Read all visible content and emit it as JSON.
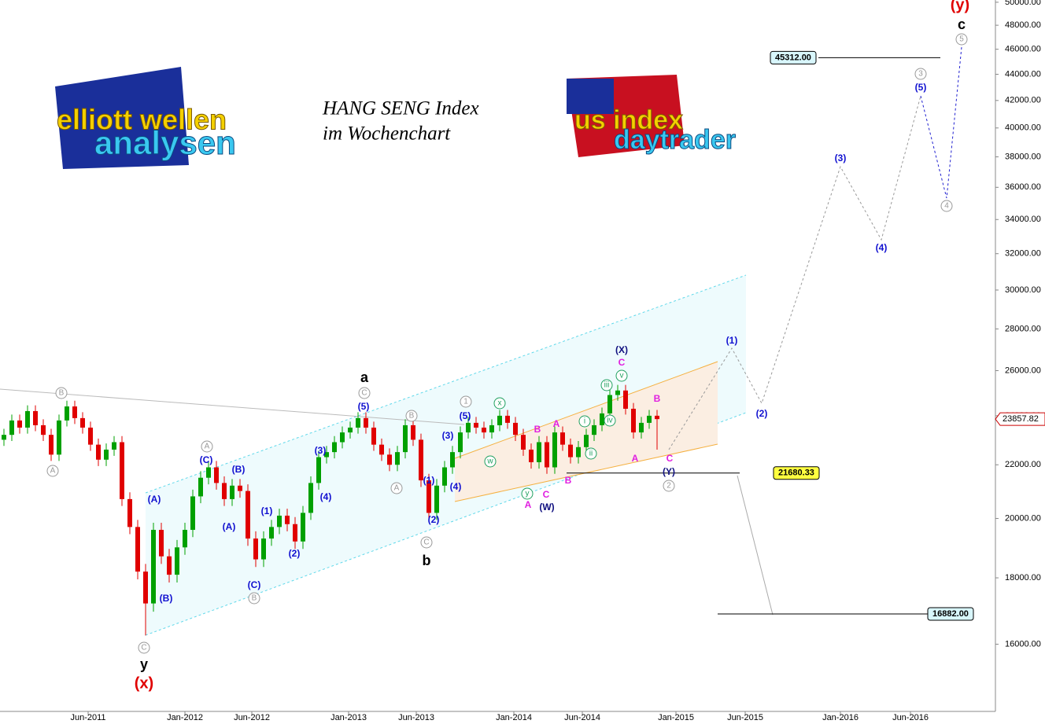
{
  "chart_data": {
    "type": "candlestick",
    "title_lines": [
      "HANG SENG Index",
      "im Wochenchart"
    ],
    "logos": [
      "elliott wellen",
      "analysen",
      "us index",
      "daytrader"
    ],
    "log_scale": true,
    "ylim": [
      14200,
      50200
    ],
    "yticks": [
      {
        "value": 16000,
        "label": "16000.00"
      },
      {
        "value": 18000,
        "label": "18000.00"
      },
      {
        "value": 20000,
        "label": "20000.00"
      },
      {
        "value": 22000,
        "label": "22000.00"
      },
      {
        "value": 24000,
        "label": "24000.00"
      },
      {
        "value": 26000,
        "label": "26000.00"
      },
      {
        "value": 28000,
        "label": "28000.00"
      },
      {
        "value": 30000,
        "label": "30000.00"
      },
      {
        "value": 32000,
        "label": "32000.00"
      },
      {
        "value": 34000,
        "label": "34000.00"
      },
      {
        "value": 36000,
        "label": "36000.00"
      },
      {
        "value": 38000,
        "label": "38000.00"
      },
      {
        "value": 40000,
        "label": "40000.00"
      },
      {
        "value": 42000,
        "label": "42000.00"
      },
      {
        "value": 44000,
        "label": "44000.00"
      },
      {
        "value": 46000,
        "label": "46000.00"
      },
      {
        "value": 48000,
        "label": "48000.00"
      },
      {
        "value": 50000,
        "label": "50000.00"
      }
    ],
    "xtick_labels": [
      "Jun-2011",
      "Jan-2012",
      "Jun-2012",
      "Jan-2013",
      "Jun-2013",
      "Jan-2014",
      "Jun-2014",
      "Jan-2015",
      "Jun-2015",
      "Jan-2016",
      "Jun-2016"
    ],
    "up_color": "#00a000",
    "down_color": "#e00000",
    "last_price": {
      "value": 23857.82,
      "label": "23857.82"
    },
    "levels": [
      {
        "value": 45312,
        "label": "45312.00"
      },
      {
        "value": 21680.33,
        "label": "21680.33"
      },
      {
        "value": 16882,
        "label": "16882.00"
      }
    ],
    "ohlc": [
      [
        23000,
        23450,
        22750,
        23200
      ],
      [
        23200,
        24050,
        22950,
        23800
      ],
      [
        23800,
        24050,
        23250,
        23500
      ],
      [
        23500,
        24450,
        23250,
        24200
      ],
      [
        24200,
        24450,
        23350,
        23600
      ],
      [
        23600,
        23850,
        22950,
        23200
      ],
      [
        23200,
        23450,
        22150,
        22400
      ],
      [
        22400,
        24050,
        22150,
        23800
      ],
      [
        23800,
        24650,
        23550,
        24400
      ],
      [
        24400,
        24650,
        23650,
        23900
      ],
      [
        23900,
        24150,
        23250,
        23500
      ],
      [
        23500,
        23750,
        22550,
        22800
      ],
      [
        22800,
        23050,
        21950,
        22200
      ],
      [
        22200,
        22850,
        21950,
        22600
      ],
      [
        22600,
        23150,
        22350,
        22900
      ],
      [
        22900,
        23150,
        20450,
        20700
      ],
      [
        20700,
        20950,
        19450,
        19700
      ],
      [
        19700,
        19950,
        17950,
        18200
      ],
      [
        18200,
        18450,
        16250,
        17200
      ],
      [
        17200,
        19850,
        16950,
        19600
      ],
      [
        19600,
        19850,
        18450,
        18700
      ],
      [
        18700,
        18950,
        17850,
        18100
      ],
      [
        18100,
        19250,
        17850,
        19000
      ],
      [
        19000,
        19850,
        18750,
        19600
      ],
      [
        19600,
        21050,
        19350,
        20800
      ],
      [
        20800,
        21750,
        20550,
        21500
      ],
      [
        21500,
        22150,
        21250,
        21900
      ],
      [
        21900,
        22150,
        21050,
        21300
      ],
      [
        21300,
        21550,
        20450,
        20700
      ],
      [
        20700,
        21450,
        20450,
        21200
      ],
      [
        21200,
        21450,
        20750,
        21000
      ],
      [
        21000,
        21250,
        19050,
        19300
      ],
      [
        19300,
        19550,
        18350,
        18600
      ],
      [
        18600,
        19550,
        18350,
        19300
      ],
      [
        19300,
        19950,
        19050,
        19700
      ],
      [
        19700,
        20350,
        19450,
        20100
      ],
      [
        20100,
        20350,
        19550,
        19800
      ],
      [
        19800,
        20050,
        18950,
        19200
      ],
      [
        19200,
        20450,
        18950,
        20200
      ],
      [
        20200,
        21550,
        19950,
        21300
      ],
      [
        21300,
        22550,
        21050,
        22300
      ],
      [
        22300,
        22750,
        22050,
        22500
      ],
      [
        22500,
        23150,
        22250,
        22900
      ],
      [
        22900,
        23550,
        22650,
        23300
      ],
      [
        23300,
        23750,
        23050,
        23500
      ],
      [
        23500,
        24150,
        23250,
        23900
      ],
      [
        23900,
        24150,
        23250,
        23500
      ],
      [
        23500,
        23750,
        22550,
        22800
      ],
      [
        22800,
        23050,
        22150,
        22400
      ],
      [
        22400,
        22650,
        21750,
        22000
      ],
      [
        22000,
        22750,
        21750,
        22500
      ],
      [
        22500,
        23850,
        22250,
        23600
      ],
      [
        23600,
        23850,
        22750,
        23000
      ],
      [
        23000,
        23250,
        21150,
        21400
      ],
      [
        21400,
        21650,
        19950,
        20200
      ],
      [
        20200,
        21450,
        19950,
        21200
      ],
      [
        21200,
        22150,
        20950,
        21900
      ],
      [
        21900,
        22750,
        21650,
        22500
      ],
      [
        22500,
        23550,
        22250,
        23300
      ],
      [
        23300,
        23950,
        23050,
        23700
      ],
      [
        23700,
        23950,
        23250,
        23500
      ],
      [
        23500,
        23750,
        23050,
        23300
      ],
      [
        23300,
        23850,
        23050,
        23600
      ],
      [
        23600,
        24250,
        23350,
        24000
      ],
      [
        24000,
        24250,
        23450,
        23700
      ],
      [
        23700,
        23950,
        22950,
        23200
      ],
      [
        23200,
        23450,
        22350,
        22600
      ],
      [
        22600,
        22850,
        21850,
        22100
      ],
      [
        22100,
        23150,
        21850,
        22900
      ],
      [
        22900,
        23150,
        21650,
        21900
      ],
      [
        21900,
        23550,
        21650,
        23300
      ],
      [
        23300,
        23550,
        22550,
        22800
      ],
      [
        22800,
        23050,
        22050,
        22300
      ],
      [
        22300,
        22950,
        22050,
        22700
      ],
      [
        22700,
        23450,
        22450,
        23200
      ],
      [
        23200,
        23850,
        22950,
        23600
      ],
      [
        23600,
        24350,
        23350,
        24100
      ],
      [
        24100,
        25150,
        23850,
        24900
      ],
      [
        24900,
        25350,
        24650,
        25100
      ],
      [
        25100,
        25350,
        24050,
        24300
      ],
      [
        24300,
        24550,
        23050,
        23300
      ],
      [
        23300,
        23950,
        23050,
        23700
      ],
      [
        23700,
        24250,
        23450,
        24000
      ],
      [
        24000,
        24250,
        22600,
        23857.82
      ]
    ],
    "wave_labels": [
      "(y)",
      "c",
      "5",
      "3",
      "(5)",
      "(3)",
      "(4)",
      "4",
      "(1)",
      "(2)",
      "(X)",
      "C",
      "v",
      "iii",
      "iv",
      "ii",
      "i",
      "B",
      "A",
      "C",
      "(Y)",
      "2",
      "A",
      "B",
      "C",
      "(W)",
      "A",
      "y",
      "B",
      "x",
      "w",
      "1",
      "(5)",
      "(3)",
      "(1)",
      "(4)",
      "(2)",
      "C",
      "b",
      "B",
      "A",
      "a",
      "C",
      "(5)",
      "(3)",
      "(4)",
      "(1)",
      "(2)",
      "(C)",
      "B",
      "(B)",
      "(A)",
      "(C)",
      "A",
      "(A)",
      "(B)",
      "C",
      "y",
      "(x)",
      "B",
      "A"
    ]
  }
}
